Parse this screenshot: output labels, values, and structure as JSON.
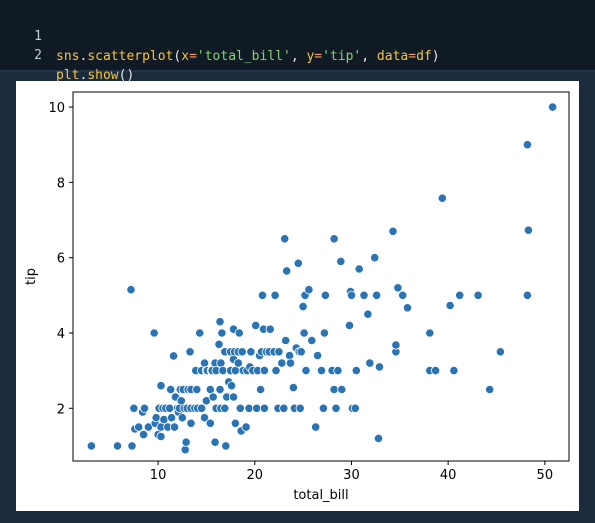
{
  "code_cell": {
    "lines": [
      {
        "number": "1",
        "text": "sns.scatterplot(x='total_bill', y='tip', data=df)"
      },
      {
        "number": "2",
        "text": "plt.show()"
      }
    ]
  },
  "colors": {
    "page_background": "#1b2b3b",
    "code_background": "#0f1a24",
    "marker_fill": "#2a74b3",
    "marker_edge": "#ffffff"
  },
  "chart_data": {
    "type": "scatter",
    "xlabel": "total_bill",
    "ylabel": "tip",
    "xlim": [
      1.2,
      52.5
    ],
    "ylim": [
      0.6,
      10.4
    ],
    "xticks": [
      10,
      20,
      30,
      40,
      50
    ],
    "yticks": [
      2,
      4,
      6,
      8,
      10
    ],
    "grid": false,
    "points": [
      [
        3.1,
        1.0
      ],
      [
        5.8,
        1.0
      ],
      [
        7.3,
        1.0
      ],
      [
        7.2,
        5.15
      ],
      [
        7.5,
        2.0
      ],
      [
        7.6,
        1.45
      ],
      [
        8.0,
        1.5
      ],
      [
        8.4,
        1.9
      ],
      [
        8.5,
        1.3
      ],
      [
        8.6,
        2.0
      ],
      [
        9.0,
        1.5
      ],
      [
        9.6,
        4.0
      ],
      [
        9.7,
        1.6
      ],
      [
        9.8,
        1.75
      ],
      [
        10.0,
        1.3
      ],
      [
        10.1,
        2.0
      ],
      [
        10.3,
        2.6
      ],
      [
        10.3,
        1.5
      ],
      [
        10.5,
        2.0
      ],
      [
        10.3,
        1.25
      ],
      [
        10.6,
        1.7
      ],
      [
        10.8,
        2.0
      ],
      [
        11.0,
        1.5
      ],
      [
        11.2,
        2.0
      ],
      [
        11.3,
        2.5
      ],
      [
        11.4,
        1.75
      ],
      [
        11.6,
        3.39
      ],
      [
        11.7,
        1.5
      ],
      [
        11.8,
        2.3
      ],
      [
        12.0,
        2.0
      ],
      [
        12.1,
        1.9
      ],
      [
        12.2,
        2.0
      ],
      [
        12.3,
        2.5
      ],
      [
        12.5,
        1.75
      ],
      [
        12.7,
        2.0
      ],
      [
        12.8,
        0.9
      ],
      [
        12.9,
        1.1
      ],
      [
        12.4,
        2.2
      ],
      [
        12.6,
        2.5
      ],
      [
        13.0,
        2.0
      ],
      [
        13.1,
        2.5
      ],
      [
        13.3,
        3.5
      ],
      [
        13.4,
        2.0
      ],
      [
        13.4,
        1.6
      ],
      [
        13.4,
        2.5
      ],
      [
        13.8,
        2.0
      ],
      [
        13.9,
        3.0
      ],
      [
        14.0,
        2.5
      ],
      [
        14.1,
        2.0
      ],
      [
        14.3,
        4.0
      ],
      [
        14.5,
        2.0
      ],
      [
        14.5,
        3.0
      ],
      [
        14.8,
        3.2
      ],
      [
        14.8,
        1.75
      ],
      [
        15.0,
        3.0
      ],
      [
        15.0,
        2.2
      ],
      [
        15.1,
        3.0
      ],
      [
        15.4,
        2.5
      ],
      [
        15.4,
        1.6
      ],
      [
        15.5,
        3.0
      ],
      [
        15.6,
        3.0
      ],
      [
        15.7,
        2.3
      ],
      [
        15.9,
        3.2
      ],
      [
        15.9,
        1.1
      ],
      [
        16.0,
        2.0
      ],
      [
        16.0,
        3.0
      ],
      [
        16.3,
        3.7
      ],
      [
        16.4,
        4.3
      ],
      [
        16.4,
        2.5
      ],
      [
        16.5,
        3.2
      ],
      [
        16.5,
        2.0
      ],
      [
        16.6,
        4.0
      ],
      [
        16.7,
        3.0
      ],
      [
        16.9,
        2.0
      ],
      [
        16.9,
        3.5
      ],
      [
        17.0,
        1.0
      ],
      [
        17.1,
        2.3
      ],
      [
        17.3,
        2.7
      ],
      [
        17.5,
        3.5
      ],
      [
        17.5,
        3.0
      ],
      [
        17.6,
        2.6
      ],
      [
        17.8,
        3.3
      ],
      [
        17.8,
        2.3
      ],
      [
        17.8,
        4.1
      ],
      [
        17.9,
        3.5
      ],
      [
        18.0,
        1.6
      ],
      [
        18.0,
        3.0
      ],
      [
        18.3,
        3.2
      ],
      [
        18.3,
        3.5
      ],
      [
        18.4,
        4.0
      ],
      [
        18.5,
        2.0
      ],
      [
        18.6,
        1.4
      ],
      [
        18.7,
        3.5
      ],
      [
        18.8,
        3.0
      ],
      [
        19.1,
        1.5
      ],
      [
        19.2,
        3.0
      ],
      [
        19.4,
        2.0
      ],
      [
        19.5,
        3.1
      ],
      [
        19.6,
        3.5
      ],
      [
        19.8,
        3.0
      ],
      [
        20.1,
        4.2
      ],
      [
        20.2,
        2.0
      ],
      [
        20.3,
        3.0
      ],
      [
        20.5,
        3.4
      ],
      [
        20.6,
        2.5
      ],
      [
        20.7,
        3.5
      ],
      [
        20.8,
        5.0
      ],
      [
        20.9,
        4.1
      ],
      [
        21.0,
        3.0
      ],
      [
        21.0,
        2.0
      ],
      [
        21.2,
        3.5
      ],
      [
        21.5,
        3.5
      ],
      [
        21.6,
        4.1
      ],
      [
        22.0,
        3.5
      ],
      [
        22.1,
        5.0
      ],
      [
        22.2,
        3.0
      ],
      [
        22.4,
        2.0
      ],
      [
        22.5,
        3.5
      ],
      [
        22.8,
        3.2
      ],
      [
        23.0,
        2.0
      ],
      [
        23.1,
        6.5
      ],
      [
        23.2,
        3.8
      ],
      [
        23.3,
        5.65
      ],
      [
        23.6,
        3.4
      ],
      [
        23.7,
        3.2
      ],
      [
        24.0,
        2.55
      ],
      [
        24.1,
        2.0
      ],
      [
        24.3,
        3.6
      ],
      [
        24.5,
        5.85
      ],
      [
        24.6,
        3.5
      ],
      [
        24.7,
        2.0
      ],
      [
        24.8,
        3.5
      ],
      [
        25.0,
        4.7
      ],
      [
        25.1,
        4.0
      ],
      [
        25.2,
        5.0
      ],
      [
        25.3,
        3.0
      ],
      [
        25.6,
        5.15
      ],
      [
        25.9,
        3.8
      ],
      [
        26.3,
        1.5
      ],
      [
        26.5,
        3.4
      ],
      [
        26.9,
        3.0
      ],
      [
        27.1,
        2.0
      ],
      [
        27.2,
        4.0
      ],
      [
        27.3,
        5.0
      ],
      [
        28.0,
        3.0
      ],
      [
        28.2,
        2.5
      ],
      [
        28.2,
        6.5
      ],
      [
        28.4,
        2.0
      ],
      [
        28.6,
        3.0
      ],
      [
        28.9,
        5.9
      ],
      [
        29.0,
        2.5
      ],
      [
        29.8,
        4.2
      ],
      [
        29.9,
        5.1
      ],
      [
        30.0,
        5.0
      ],
      [
        30.1,
        2.0
      ],
      [
        30.4,
        2.0
      ],
      [
        30.5,
        3.0
      ],
      [
        30.8,
        5.7
      ],
      [
        31.3,
        5.0
      ],
      [
        31.7,
        4.5
      ],
      [
        31.9,
        3.2
      ],
      [
        32.4,
        6.0
      ],
      [
        32.6,
        5.0
      ],
      [
        32.8,
        1.2
      ],
      [
        32.9,
        3.1
      ],
      [
        34.3,
        6.7
      ],
      [
        34.6,
        3.5
      ],
      [
        34.6,
        3.68
      ],
      [
        34.8,
        5.2
      ],
      [
        35.3,
        5.0
      ],
      [
        35.8,
        4.67
      ],
      [
        38.1,
        4.0
      ],
      [
        38.1,
        3.0
      ],
      [
        38.7,
        3.0
      ],
      [
        39.4,
        7.58
      ],
      [
        40.2,
        4.73
      ],
      [
        40.6,
        3.0
      ],
      [
        41.2,
        5.0
      ],
      [
        43.1,
        5.0
      ],
      [
        44.3,
        2.5
      ],
      [
        45.4,
        3.5
      ],
      [
        48.2,
        5.0
      ],
      [
        48.2,
        9.0
      ],
      [
        48.3,
        6.73
      ],
      [
        50.8,
        10.0
      ]
    ]
  }
}
